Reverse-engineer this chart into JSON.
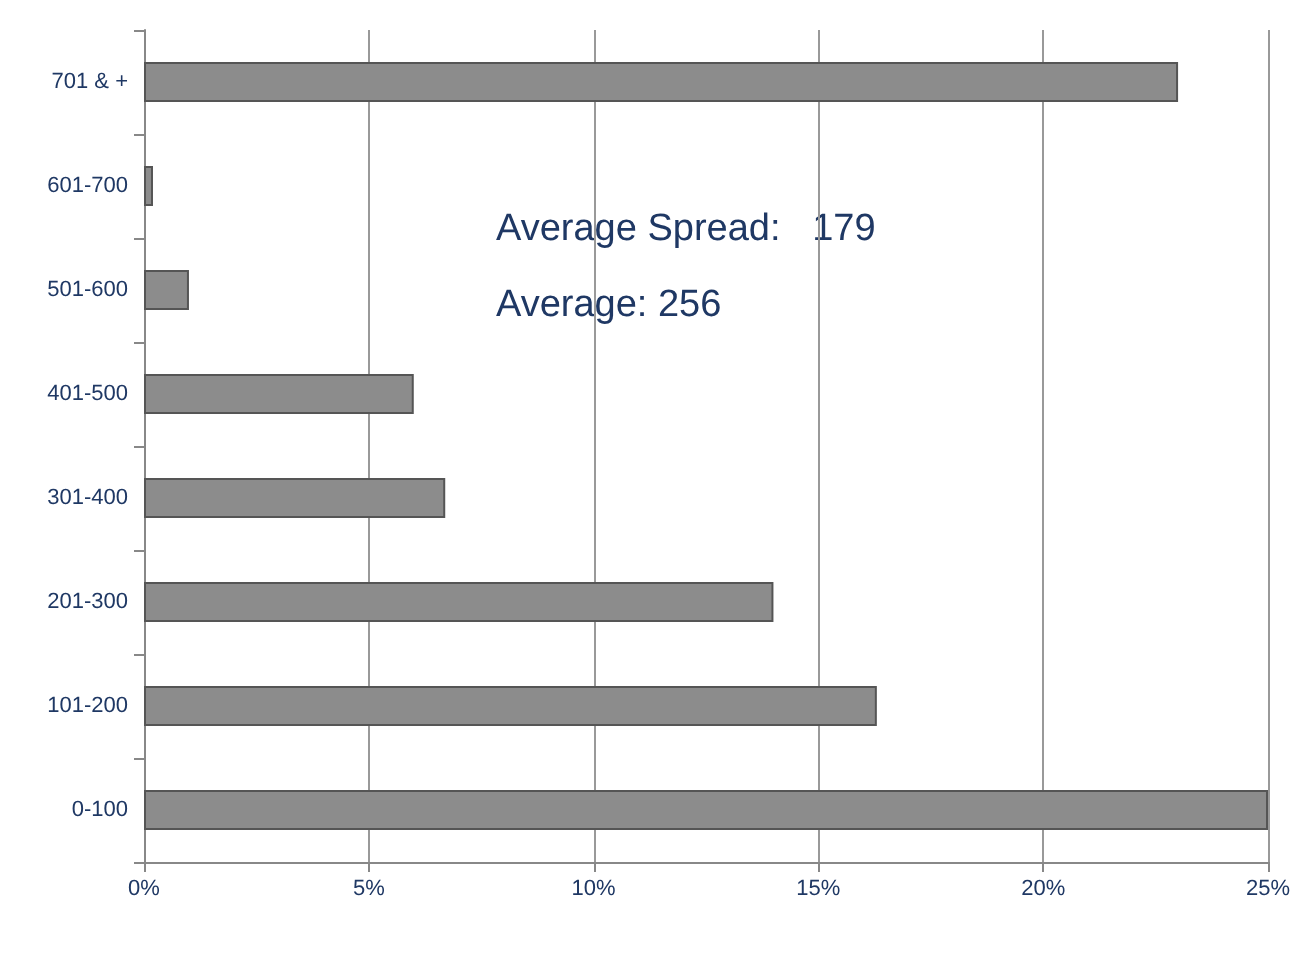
{
  "chart_data": {
    "type": "bar",
    "orientation": "horizontal",
    "categories": [
      "701 & +",
      "601-700",
      "501-600",
      "401-500",
      "301-400",
      "201-300",
      "101-200",
      "0-100"
    ],
    "values": [
      23,
      0.2,
      1,
      6,
      6.7,
      14,
      16.3,
      25
    ],
    "color": "#8c8c8c",
    "xlim": [
      0,
      25
    ],
    "xticks": [
      {
        "value": 0,
        "label": "0%"
      },
      {
        "value": 5,
        "label": "5%"
      },
      {
        "value": 10,
        "label": "10%"
      },
      {
        "value": 15,
        "label": "15%"
      },
      {
        "value": 20,
        "label": "20%"
      },
      {
        "value": 25,
        "label": "25%"
      }
    ],
    "grid": "x",
    "annotations": [
      "Average Spread:   179",
      "Average: 256"
    ]
  }
}
